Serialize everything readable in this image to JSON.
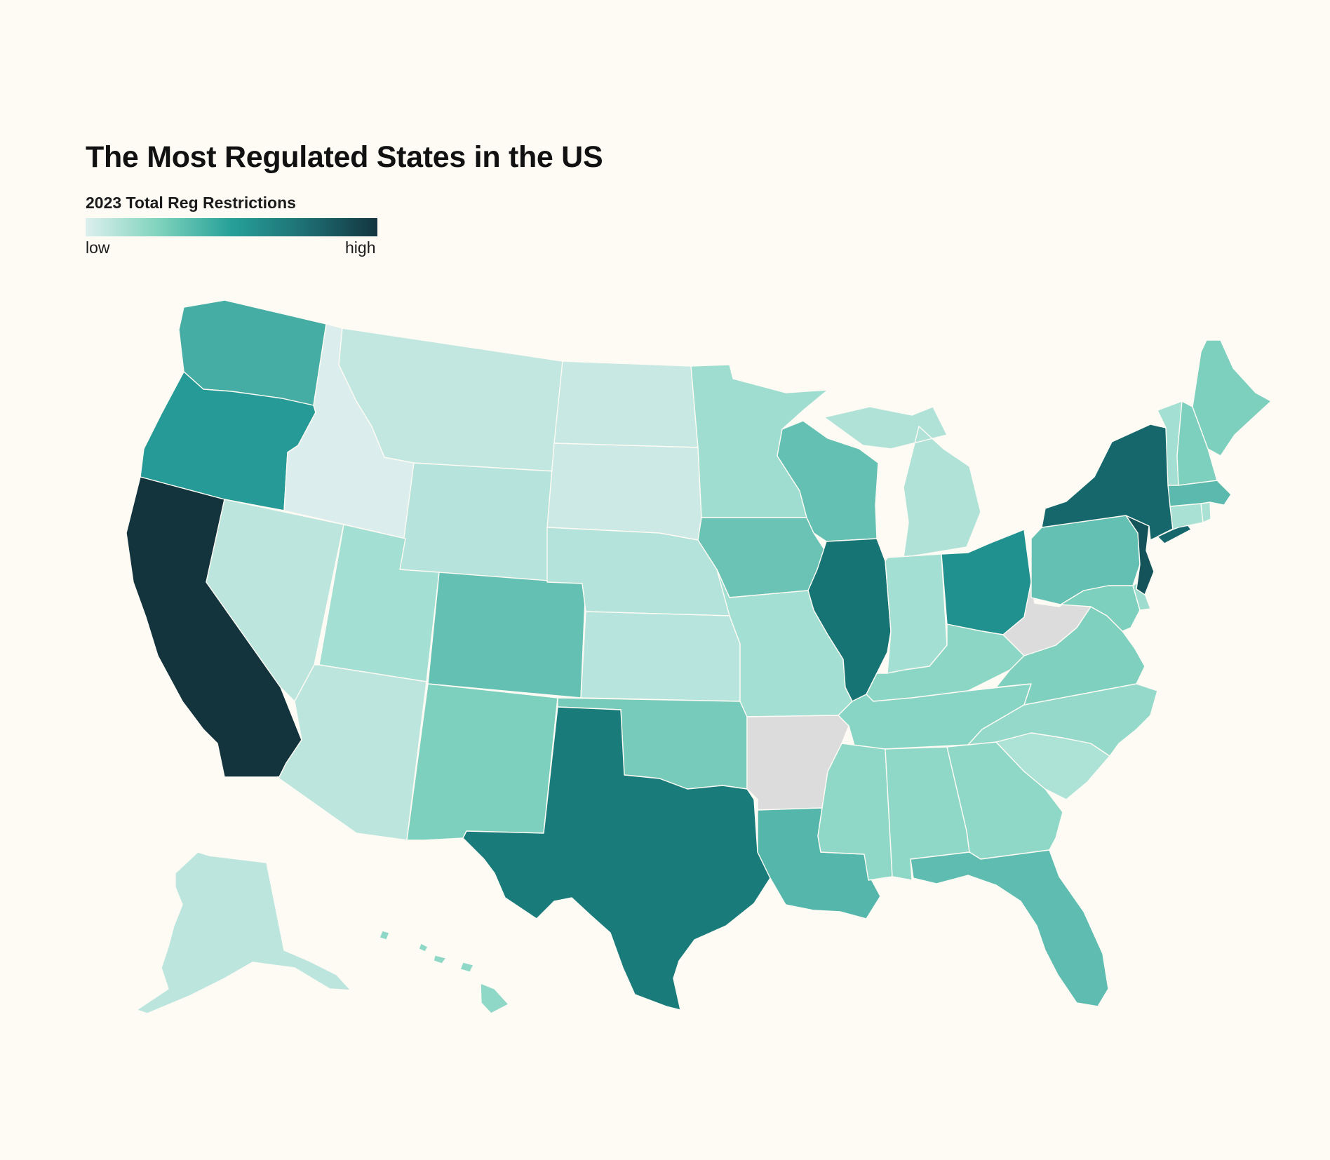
{
  "title": "The Most Regulated States in the US",
  "legend": {
    "title": "2023 Total Reg Restrictions",
    "low_label": "low",
    "high_label": "high",
    "gradient": [
      "#dcefee",
      "#7fd3bd",
      "#26a098",
      "#1d6f73",
      "#133540"
    ]
  },
  "colors": {
    "background": "#fdfbf4",
    "no_data": "#dcdcdc"
  },
  "states": [
    {
      "id": "CA",
      "name": "California",
      "color": "#13343d"
    },
    {
      "id": "NY",
      "name": "New York",
      "color": "#16676c"
    },
    {
      "id": "NJ",
      "name": "New Jersey",
      "color": "#14535a"
    },
    {
      "id": "IL",
      "name": "Illinois",
      "color": "#177474"
    },
    {
      "id": "TX",
      "name": "Texas",
      "color": "#1a7b7b"
    },
    {
      "id": "OH",
      "name": "Ohio",
      "color": "#21918f"
    },
    {
      "id": "OR",
      "name": "Oregon",
      "color": "#269a96"
    },
    {
      "id": "WA",
      "name": "Washington",
      "color": "#46ada4"
    },
    {
      "id": "LA",
      "name": "Louisiana",
      "color": "#55b7ab"
    },
    {
      "id": "FL",
      "name": "Florida",
      "color": "#5fbcb0"
    },
    {
      "id": "MA",
      "name": "Massachusetts",
      "color": "#5cb9ad"
    },
    {
      "id": "CO",
      "name": "Colorado",
      "color": "#64c0b2"
    },
    {
      "id": "WI",
      "name": "Wisconsin",
      "color": "#64c0b2"
    },
    {
      "id": "PA",
      "name": "Pennsylvania",
      "color": "#64c0b2"
    },
    {
      "id": "IA",
      "name": "Iowa",
      "color": "#6ac3b4"
    },
    {
      "id": "OK",
      "name": "Oklahoma",
      "color": "#77cbbb"
    },
    {
      "id": "NM",
      "name": "New Mexico",
      "color": "#7dcfbe"
    },
    {
      "id": "ME",
      "name": "Maine",
      "color": "#7dcfbe"
    },
    {
      "id": "NH",
      "name": "New Hampshire",
      "color": "#7dcfbe"
    },
    {
      "id": "MD",
      "name": "Maryland",
      "color": "#7dcfbe"
    },
    {
      "id": "VA",
      "name": "Virginia",
      "color": "#80d0bf"
    },
    {
      "id": "TN",
      "name": "Tennessee",
      "color": "#89d5c5"
    },
    {
      "id": "KY",
      "name": "Kentucky",
      "color": "#8cd6c6"
    },
    {
      "id": "MS",
      "name": "Mississippi",
      "color": "#8fd8c8"
    },
    {
      "id": "AL",
      "name": "Alabama",
      "color": "#8fd8c8"
    },
    {
      "id": "GA",
      "name": "Georgia",
      "color": "#8fd8c8"
    },
    {
      "id": "HI",
      "name": "Hawaii",
      "color": "#8fd8c8"
    },
    {
      "id": "NC",
      "name": "North Carolina",
      "color": "#94d9ca"
    },
    {
      "id": "DE",
      "name": "Delaware",
      "color": "#9ddcce"
    },
    {
      "id": "MN",
      "name": "Minnesota",
      "color": "#9fddd0"
    },
    {
      "id": "MO",
      "name": "Missouri",
      "color": "#a4dfd3"
    },
    {
      "id": "UT",
      "name": "Utah",
      "color": "#a4dfd3"
    },
    {
      "id": "IN",
      "name": "Indiana",
      "color": "#a4dfd3"
    },
    {
      "id": "VT",
      "name": "Vermont",
      "color": "#a4dfd3"
    },
    {
      "id": "CT",
      "name": "Connecticut",
      "color": "#a9e1d5"
    },
    {
      "id": "RI",
      "name": "Rhode Island",
      "color": "#a9e1d5"
    },
    {
      "id": "SC",
      "name": "South Carolina",
      "color": "#ade2d6"
    },
    {
      "id": "MI",
      "name": "Michigan",
      "color": "#b1e2d8"
    },
    {
      "id": "NE",
      "name": "Nebraska",
      "color": "#b3e3da"
    },
    {
      "id": "WY",
      "name": "Wyoming",
      "color": "#b6e3db"
    },
    {
      "id": "KS",
      "name": "Kansas",
      "color": "#b7e4dc"
    },
    {
      "id": "AZ",
      "name": "Arizona",
      "color": "#bce5de"
    },
    {
      "id": "NV",
      "name": "Nevada",
      "color": "#bce5de"
    },
    {
      "id": "AK",
      "name": "Alaska",
      "color": "#bce5de"
    },
    {
      "id": "MT",
      "name": "Montana",
      "color": "#c2e7e1"
    },
    {
      "id": "ND",
      "name": "North Dakota",
      "color": "#c7e8e3"
    },
    {
      "id": "SD",
      "name": "South Dakota",
      "color": "#cce9e5"
    },
    {
      "id": "ID",
      "name": "Idaho",
      "color": "#dbeded"
    },
    {
      "id": "AR",
      "name": "Arkansas",
      "color": "#dcdcdc"
    },
    {
      "id": "WV",
      "name": "West Virginia",
      "color": "#dcdcdc"
    }
  ]
}
